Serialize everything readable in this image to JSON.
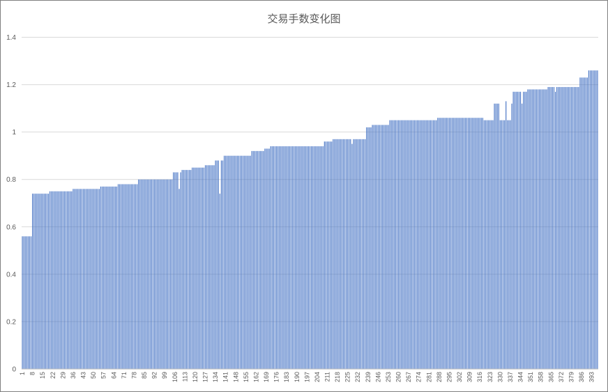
{
  "chart_data": {
    "type": "bar",
    "title": "交易手数变化图",
    "xlabel": "",
    "ylabel": "",
    "ylim": [
      0,
      1.4
    ],
    "yticks": [
      0,
      0.2,
      0.4,
      0.6,
      0.8,
      1,
      1.2,
      1.4
    ],
    "x_range": [
      1,
      397
    ],
    "xtick_labels": [
      "1",
      "8",
      "15",
      "22",
      "29",
      "36",
      "43",
      "50",
      "57",
      "64",
      "71",
      "78",
      "85",
      "92",
      "99",
      "106",
      "113",
      "120",
      "127",
      "134",
      "141",
      "148",
      "155",
      "162",
      "169",
      "176",
      "183",
      "190",
      "197",
      "204",
      "211",
      "218",
      "225",
      "232",
      "239",
      "246",
      "253",
      "260",
      "267",
      "274",
      "281",
      "288",
      "295",
      "302",
      "309",
      "316",
      "323",
      "330",
      "337",
      "344",
      "351",
      "358",
      "365",
      "372",
      "379",
      "386",
      "393"
    ],
    "grid": true,
    "legend": "none",
    "bar_color": "#4472c4",
    "series_segments": [
      {
        "from": 1,
        "to": 7,
        "value": 0.56
      },
      {
        "from": 8,
        "to": 19,
        "value": 0.74
      },
      {
        "from": 20,
        "to": 35,
        "value": 0.75
      },
      {
        "from": 36,
        "to": 54,
        "value": 0.76
      },
      {
        "from": 55,
        "to": 66,
        "value": 0.77
      },
      {
        "from": 67,
        "to": 80,
        "value": 0.78
      },
      {
        "from": 81,
        "to": 104,
        "value": 0.8
      },
      {
        "from": 105,
        "to": 110,
        "value": 0.83
      },
      {
        "from": 111,
        "to": 117,
        "value": 0.84
      },
      {
        "from": 118,
        "to": 126,
        "value": 0.85
      },
      {
        "from": 127,
        "to": 133,
        "value": 0.86
      },
      {
        "from": 134,
        "to": 139,
        "value": 0.88
      },
      {
        "from": 140,
        "to": 158,
        "value": 0.9
      },
      {
        "from": 159,
        "to": 167,
        "value": 0.92
      },
      {
        "from": 168,
        "to": 171,
        "value": 0.93
      },
      {
        "from": 172,
        "to": 208,
        "value": 0.94
      },
      {
        "from": 209,
        "to": 214,
        "value": 0.96
      },
      {
        "from": 215,
        "to": 237,
        "value": 0.97
      },
      {
        "from": 238,
        "to": 241,
        "value": 1.02
      },
      {
        "from": 242,
        "to": 253,
        "value": 1.03
      },
      {
        "from": 254,
        "to": 286,
        "value": 1.05
      },
      {
        "from": 287,
        "to": 318,
        "value": 1.06
      },
      {
        "from": 319,
        "to": 325,
        "value": 1.05
      },
      {
        "from": 326,
        "to": 329,
        "value": 1.12
      },
      {
        "from": 330,
        "to": 337,
        "value": 1.05
      },
      {
        "from": 338,
        "to": 348,
        "value": 1.17
      },
      {
        "from": 349,
        "to": 362,
        "value": 1.18
      },
      {
        "from": 363,
        "to": 384,
        "value": 1.19
      },
      {
        "from": 385,
        "to": 390,
        "value": 1.23
      },
      {
        "from": 391,
        "to": 397,
        "value": 1.26
      }
    ],
    "outliers": [
      {
        "x": 109,
        "value": 0.76
      },
      {
        "x": 137,
        "value": 0.74
      },
      {
        "x": 228,
        "value": 0.95
      },
      {
        "x": 334,
        "value": 1.13
      },
      {
        "x": 338,
        "value": 1.12
      },
      {
        "x": 345,
        "value": 1.12
      },
      {
        "x": 368,
        "value": 1.17
      }
    ]
  }
}
